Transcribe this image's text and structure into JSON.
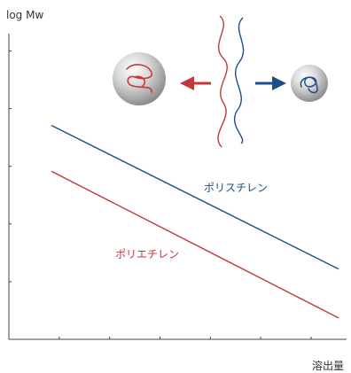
{
  "chart_data": {
    "type": "line",
    "ylabel": "log Mw",
    "xlabel": "溶出量",
    "x": [
      0,
      10
    ],
    "xlim": [
      0,
      10
    ],
    "ylim": [
      0,
      10
    ],
    "grid": false,
    "series": [
      {
        "name": "ポリスチレン",
        "color": "#1a4f8a",
        "values": [
          7.0,
          2.3
        ]
      },
      {
        "name": "ポリエチレン",
        "color": "#c0393b",
        "values": [
          5.5,
          0.7
        ]
      }
    ],
    "x_ticks": 6,
    "y_ticks": 5
  },
  "illustration": {
    "large_sphere_icon": "large-polymer-sphere",
    "small_sphere_icon": "small-polymer-sphere",
    "left_arrow_color": "#c0393b",
    "right_arrow_color": "#1a4f8a"
  }
}
